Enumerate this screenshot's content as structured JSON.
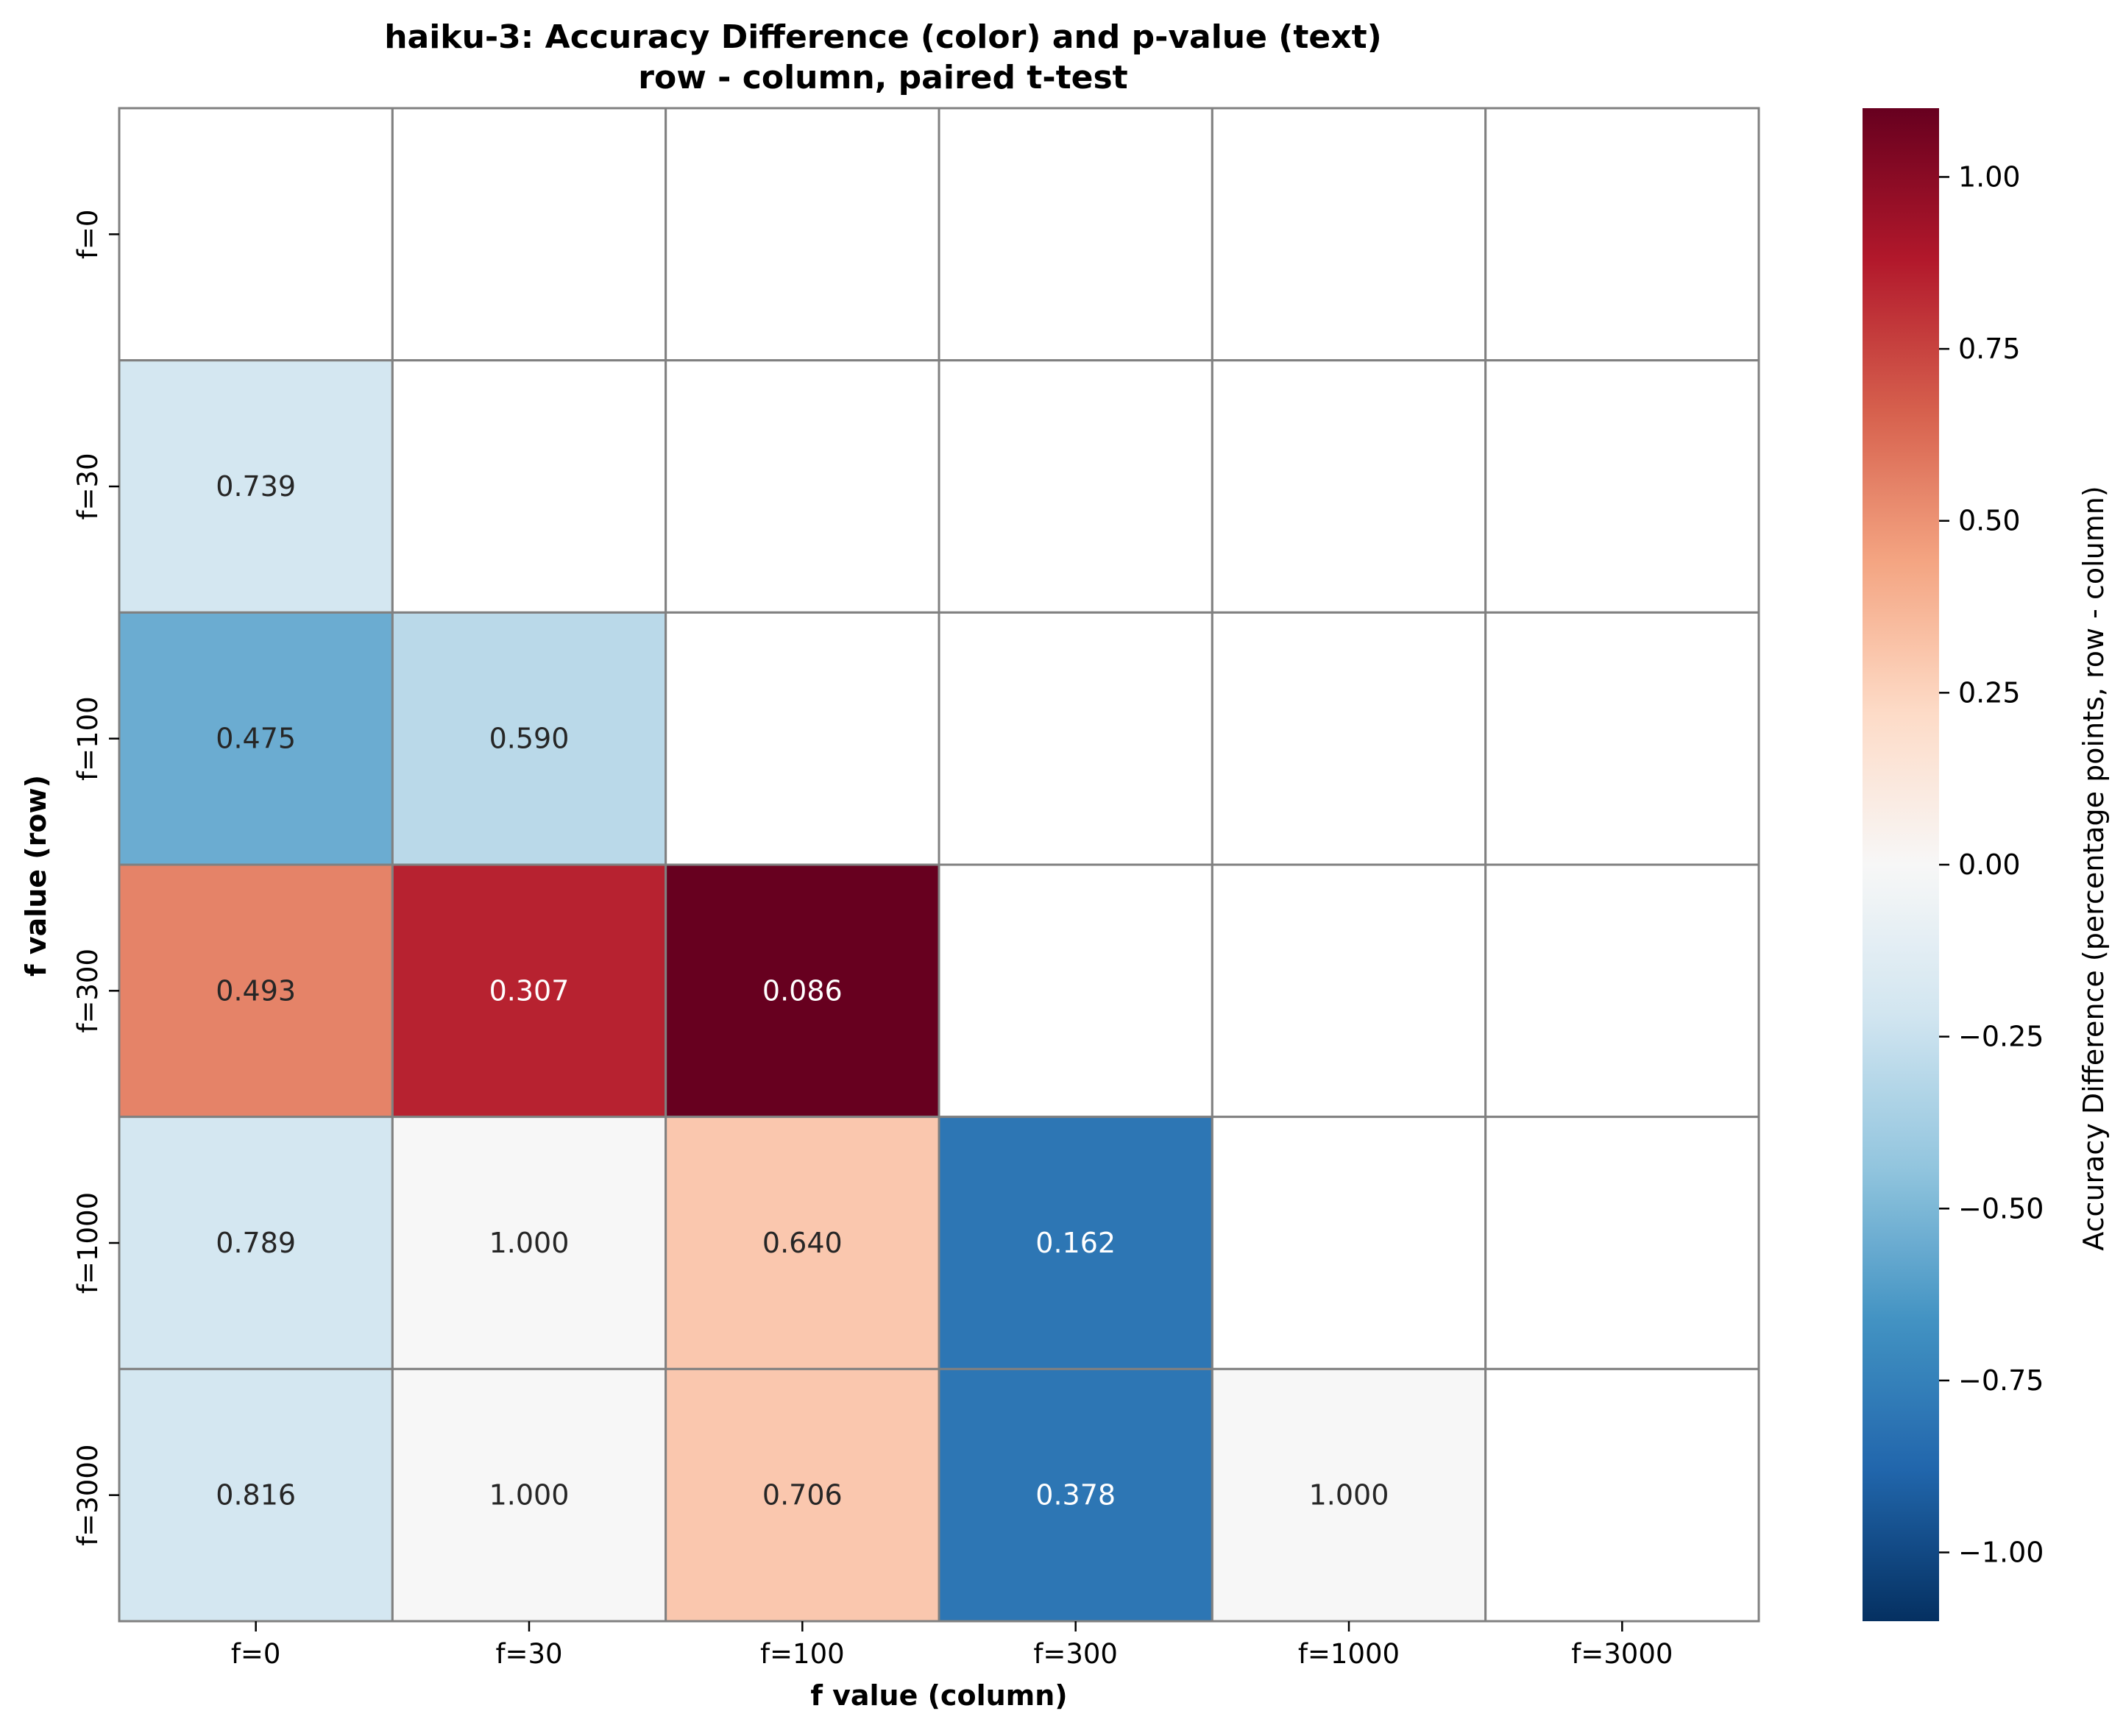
{
  "chart_data": {
    "type": "heatmap",
    "title": "haiku-3: Accuracy Difference (color) and p-value (text)",
    "subtitle": "row - column, paired t-test",
    "xlabel": "f value (column)",
    "ylabel": "f value (row)",
    "x_categories": [
      "f=0",
      "f=30",
      "f=100",
      "f=300",
      "f=1000",
      "f=3000"
    ],
    "y_categories": [
      "f=0",
      "f=30",
      "f=100",
      "f=300",
      "f=1000",
      "f=3000"
    ],
    "color_values": [
      [
        null,
        null,
        null,
        null,
        null,
        null
      ],
      [
        -0.2,
        null,
        null,
        null,
        null,
        null
      ],
      [
        -0.55,
        -0.3,
        null,
        null,
        null,
        null
      ],
      [
        0.55,
        0.85,
        1.1,
        null,
        null,
        null
      ],
      [
        -0.2,
        0.0,
        0.3,
        -0.8,
        null,
        null
      ],
      [
        -0.2,
        0.0,
        0.3,
        -0.8,
        0.0,
        null
      ]
    ],
    "p_value_labels": [
      [
        null,
        null,
        null,
        null,
        null,
        null
      ],
      [
        "0.739",
        null,
        null,
        null,
        null,
        null
      ],
      [
        "0.475",
        "0.590",
        null,
        null,
        null,
        null
      ],
      [
        "0.493",
        "0.307",
        "0.086",
        null,
        null,
        null
      ],
      [
        "0.789",
        "1.000",
        "0.640",
        "0.162",
        null,
        null
      ],
      [
        "0.816",
        "1.000",
        "0.706",
        "0.378",
        "1.000",
        null
      ]
    ],
    "colorbar": {
      "label": "Accuracy Difference (percentage points, row - column)",
      "colormap": "RdBu_r",
      "vmin": -1.1,
      "vmax": 1.1,
      "ticks": [
        -1.0,
        -0.75,
        -0.5,
        -0.25,
        0.0,
        0.25,
        0.5,
        0.75,
        1.0
      ],
      "tick_labels": [
        "−1.00",
        "−0.75",
        "−0.50",
        "−0.25",
        "0.00",
        "0.25",
        "0.50",
        "0.75",
        "1.00"
      ]
    },
    "grid_color": "#808080"
  }
}
